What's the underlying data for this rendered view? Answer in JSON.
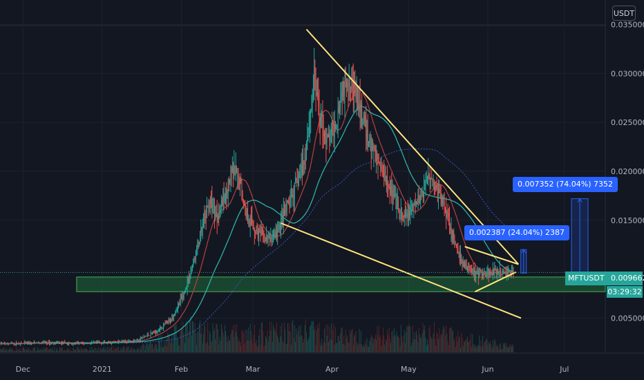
{
  "currency_label": "USDT",
  "symbol": "MFTUSDT",
  "last_price": "0.009662",
  "countdown": "03:29:32",
  "measure_labels": [
    {
      "text": "0.002387 (24.04%) 2387"
    },
    {
      "text": "0.007352 (74.04%) 7352"
    }
  ],
  "colors": {
    "background": "#131722",
    "up": "#26a69a",
    "down": "#ef5350",
    "trendline": "#ffe57f",
    "ma_fast": "#b9413a",
    "ma_mid": "#2bb3a6",
    "ma_slow": "#3a56c9",
    "support_zone": "#1f6b3c",
    "measure": "#2962ff"
  },
  "chart_data": {
    "type": "candlestick",
    "title": "",
    "y_axis": {
      "min": 0.0015,
      "max": 0.0375,
      "ticks": [
        {
          "value": 0.035,
          "label": "0.035000"
        },
        {
          "value": 0.03,
          "label": "0.030000"
        },
        {
          "value": 0.025,
          "label": "0.025000"
        },
        {
          "value": 0.02,
          "label": "0.020000"
        },
        {
          "value": 0.015,
          "label": "0.015000"
        },
        {
          "value": 0.005,
          "label": "0.005000"
        }
      ]
    },
    "x_axis": {
      "start": "2020-11-22",
      "end": "2021-07-17",
      "ticks": [
        {
          "date": "2020-12-01",
          "label": "Dec"
        },
        {
          "date": "2021-01-01",
          "label": "2021"
        },
        {
          "date": "2021-02-01",
          "label": "Feb"
        },
        {
          "date": "2021-03-01",
          "label": "Mar"
        },
        {
          "date": "2021-04-01",
          "label": "Apr"
        },
        {
          "date": "2021-05-01",
          "label": "May"
        },
        {
          "date": "2021-06-01",
          "label": "Jun"
        },
        {
          "date": "2021-07-01",
          "label": "Jul"
        }
      ]
    },
    "price_path": [
      [
        "2020-11-22",
        0.0024
      ],
      [
        "2020-12-01",
        0.0024
      ],
      [
        "2020-12-10",
        0.0025
      ],
      [
        "2020-12-20",
        0.0024
      ],
      [
        "2021-01-01",
        0.0025
      ],
      [
        "2021-01-10",
        0.0026
      ],
      [
        "2021-01-15",
        0.0028
      ],
      [
        "2021-01-22",
        0.0036
      ],
      [
        "2021-01-28",
        0.0048
      ],
      [
        "2021-02-02",
        0.0075
      ],
      [
        "2021-02-05",
        0.01
      ],
      [
        "2021-02-09",
        0.014
      ],
      [
        "2021-02-12",
        0.017
      ],
      [
        "2021-02-15",
        0.0155
      ],
      [
        "2021-02-18",
        0.0175
      ],
      [
        "2021-02-21",
        0.02
      ],
      [
        "2021-02-24",
        0.019
      ],
      [
        "2021-02-26",
        0.016
      ],
      [
        "2021-03-02",
        0.014
      ],
      [
        "2021-03-06",
        0.013
      ],
      [
        "2021-03-10",
        0.0135
      ],
      [
        "2021-03-14",
        0.016
      ],
      [
        "2021-03-18",
        0.0185
      ],
      [
        "2021-03-21",
        0.021
      ],
      [
        "2021-03-23",
        0.025
      ],
      [
        "2021-03-25",
        0.0295
      ],
      [
        "2021-03-27",
        0.026
      ],
      [
        "2021-03-30",
        0.023
      ],
      [
        "2021-04-02",
        0.0245
      ],
      [
        "2021-04-05",
        0.0285
      ],
      [
        "2021-04-08",
        0.03
      ],
      [
        "2021-04-11",
        0.027
      ],
      [
        "2021-04-15",
        0.0235
      ],
      [
        "2021-04-19",
        0.021
      ],
      [
        "2021-04-23",
        0.019
      ],
      [
        "2021-04-26",
        0.0165
      ],
      [
        "2021-04-29",
        0.015
      ],
      [
        "2021-05-02",
        0.016
      ],
      [
        "2021-05-06",
        0.0175
      ],
      [
        "2021-05-09",
        0.02
      ],
      [
        "2021-05-12",
        0.018
      ],
      [
        "2021-05-16",
        0.016
      ],
      [
        "2021-05-19",
        0.0125
      ],
      [
        "2021-05-22",
        0.0105
      ],
      [
        "2021-05-26",
        0.0098
      ],
      [
        "2021-05-30",
        0.0095
      ],
      [
        "2021-06-03",
        0.0097
      ],
      [
        "2021-06-07",
        0.0096
      ],
      [
        "2021-06-10",
        0.009662
      ]
    ],
    "volume_path": [
      [
        "2020-11-22",
        0.08
      ],
      [
        "2021-01-15",
        0.1
      ],
      [
        "2021-02-05",
        0.6
      ],
      [
        "2021-02-20",
        0.45
      ],
      [
        "2021-03-22",
        0.55
      ],
      [
        "2021-04-10",
        0.4
      ],
      [
        "2021-05-10",
        0.5
      ],
      [
        "2021-06-10",
        0.15
      ]
    ],
    "trendlines": [
      {
        "from": [
          "2021-03-22",
          0.0345
        ],
        "to": [
          "2021-06-13",
          0.0105
        ]
      },
      {
        "from": [
          "2021-03-12",
          0.0147
        ],
        "to": [
          "2021-06-14",
          0.005
        ]
      },
      {
        "from": [
          "2021-05-23",
          0.0123
        ],
        "to": [
          "2021-06-13",
          0.0105
        ]
      },
      {
        "from": [
          "2021-05-27",
          0.0077
        ],
        "to": [
          "2021-06-12",
          0.0097
        ]
      }
    ],
    "support_zone": {
      "from": "2020-12-22",
      "to": "2021-07-17",
      "low": 0.0077,
      "high": 0.0092
    },
    "last_price_value": 0.009662,
    "measures": [
      {
        "date": "2021-06-15",
        "low": 0.0096,
        "high": 0.012
      },
      {
        "date": "2021-07-07",
        "low": 0.0096,
        "high": 0.0172
      }
    ]
  }
}
